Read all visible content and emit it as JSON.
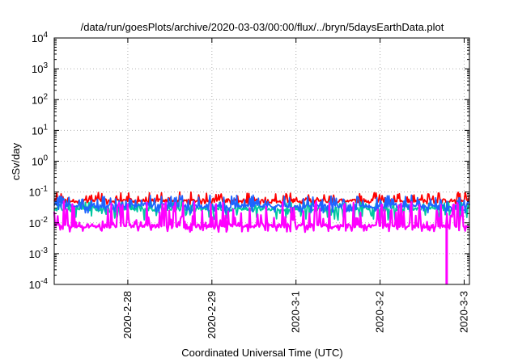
{
  "chart_data": {
    "type": "line",
    "title": "/data/run/goesPlots/archive/2020-03-03/00:00/flux/../bryn/5daysEarthData.plot",
    "xlabel": "Coordinated Universal Time (UTC)",
    "ylabel": "cSv/day",
    "yscale": "log",
    "ylim": [
      0.0001,
      10000
    ],
    "xlim": [
      "2020-02-27 03:00",
      "2020-03-03 01:30"
    ],
    "x_ticks": [
      "2020-2-28",
      "2020-2-29",
      "2020-3-1",
      "2020-3-2",
      "2020-3-3"
    ],
    "y_ticks": [
      {
        "base": "10",
        "exp": "-4"
      },
      {
        "base": "10",
        "exp": "-3"
      },
      {
        "base": "10",
        "exp": "-2"
      },
      {
        "base": "10",
        "exp": "-1"
      },
      {
        "base": "10",
        "exp": "0"
      },
      {
        "base": "10",
        "exp": "1"
      },
      {
        "base": "10",
        "exp": "2"
      },
      {
        "base": "10",
        "exp": "3"
      },
      {
        "base": "10",
        "exp": "4"
      }
    ],
    "grid": true,
    "series": [
      {
        "color": "#ff0000",
        "baseline": 0.052,
        "low": 0.04,
        "high": 0.1
      },
      {
        "color": "#00c8a0",
        "baseline": 0.028,
        "low": 0.012,
        "high": 0.05
      },
      {
        "color": "#1e64ff",
        "baseline": 0.035,
        "low": 0.02,
        "high": 0.08
      },
      {
        "color": "#ff00ff",
        "baseline": 0.008,
        "low": 0.005,
        "high": 0.05
      }
    ],
    "dropout": {
      "x": "2020-03-02 19:00",
      "to": 0.0001,
      "color": "#ff00ff"
    }
  }
}
